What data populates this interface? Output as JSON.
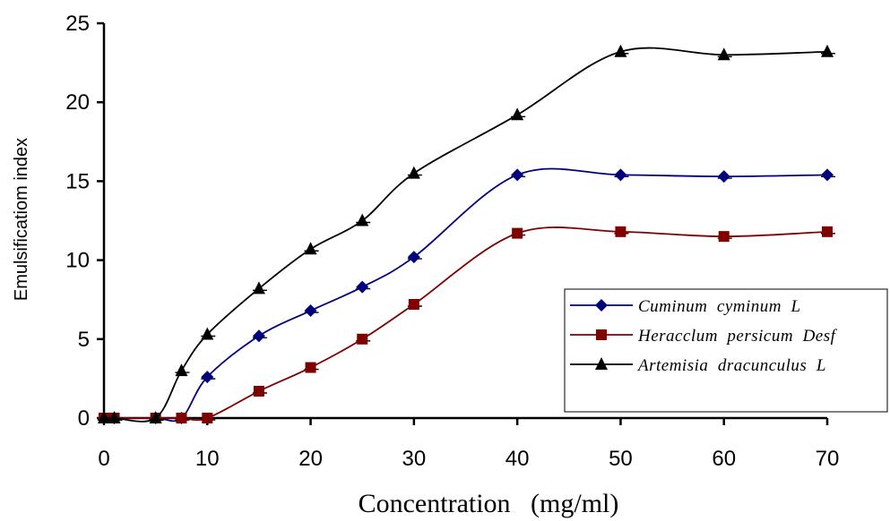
{
  "chart_data": {
    "type": "line",
    "xlabel": "Concentration   (mg/ml)",
    "ylabel": "Emulsificatiom index",
    "xlim": [
      0,
      70
    ],
    "ylim": [
      0,
      25
    ],
    "x_ticks": [
      0,
      10,
      20,
      30,
      40,
      50,
      60,
      70
    ],
    "y_ticks": [
      0,
      5,
      10,
      15,
      20,
      25
    ],
    "x_tick_labels": [
      "0",
      "10",
      "20",
      "30",
      "40",
      "50",
      "60",
      "70"
    ],
    "y_tick_labels": [
      "0",
      "5",
      "10",
      "15",
      "20",
      "25"
    ],
    "grid": false,
    "legend_position": "right",
    "series": [
      {
        "name": "Cuminum  cyminum  L",
        "color": "#00007f",
        "marker": "diamond",
        "x": [
          0,
          1,
          5,
          7.5,
          10,
          15,
          20,
          25,
          30,
          40,
          50,
          60,
          70
        ],
        "y": [
          0,
          0,
          0,
          0,
          2.6,
          5.2,
          6.8,
          8.3,
          10.2,
          15.4,
          15.4,
          15.3,
          15.4
        ]
      },
      {
        "name": "Heracclum  persicum  Desf",
        "color": "#800000",
        "marker": "square",
        "x": [
          0,
          1,
          5,
          7.5,
          10,
          15,
          20,
          25,
          30,
          40,
          50,
          60,
          70
        ],
        "y": [
          0,
          0,
          0,
          0,
          0,
          1.7,
          3.2,
          5.0,
          7.2,
          11.7,
          11.8,
          11.5,
          11.8
        ]
      },
      {
        "name": "Artemisia  dracunculus  L",
        "color": "#000000",
        "marker": "triangle",
        "x": [
          0,
          1,
          5,
          7.5,
          10,
          15,
          20,
          25,
          30,
          40,
          50,
          60,
          70
        ],
        "y": [
          0,
          0,
          0,
          3.0,
          5.3,
          8.2,
          10.7,
          12.5,
          15.5,
          19.2,
          23.2,
          23.0,
          23.2
        ]
      }
    ]
  }
}
